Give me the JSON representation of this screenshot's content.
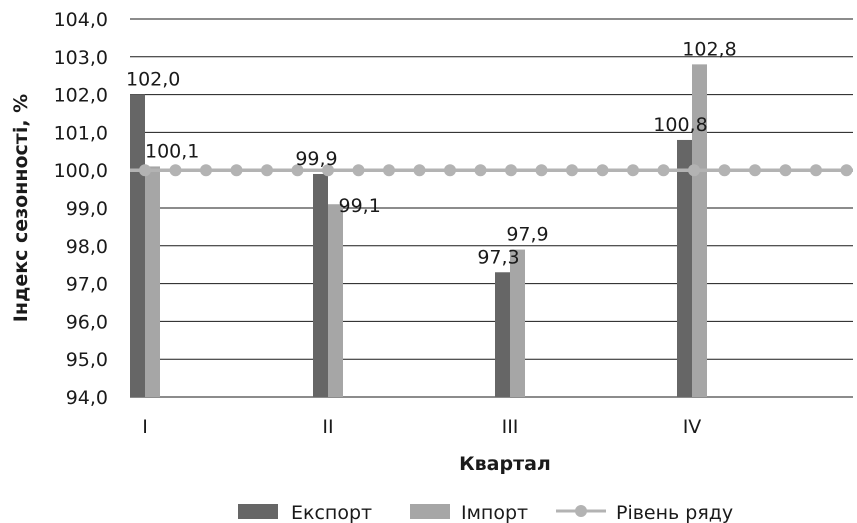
{
  "chart_data": {
    "type": "bar",
    "categories": [
      "I",
      "II",
      "III",
      "IV"
    ],
    "series": [
      {
        "name": "Експорт",
        "values": [
          102.0,
          99.9,
          97.3,
          100.8
        ],
        "labels": [
          "102,0",
          "99,9",
          "97,3",
          "100,8"
        ],
        "color": "#666666"
      },
      {
        "name": "Імпорт",
        "values": [
          100.1,
          99.1,
          97.9,
          102.8
        ],
        "labels": [
          "100,1",
          "99,1",
          "97,9",
          "102,8"
        ],
        "color": "#a6a6a6"
      }
    ],
    "reference_line": {
      "name": "Рівень ряду",
      "value": 100.0,
      "color": "#b3b3b3"
    },
    "ylim": [
      94.0,
      104.0
    ],
    "yticks": [
      94.0,
      95.0,
      96.0,
      97.0,
      98.0,
      99.0,
      100.0,
      101.0,
      102.0,
      103.0,
      104.0
    ],
    "ytick_labels": [
      "94,0",
      "95,0",
      "96,0",
      "97,0",
      "98,0",
      "99,0",
      "100,0",
      "101,0",
      "102,0",
      "103,0",
      "104,0"
    ],
    "xlabel": "Квартал",
    "ylabel": "Індекс сезонності, %",
    "grid": true,
    "legend_position": "bottom"
  }
}
